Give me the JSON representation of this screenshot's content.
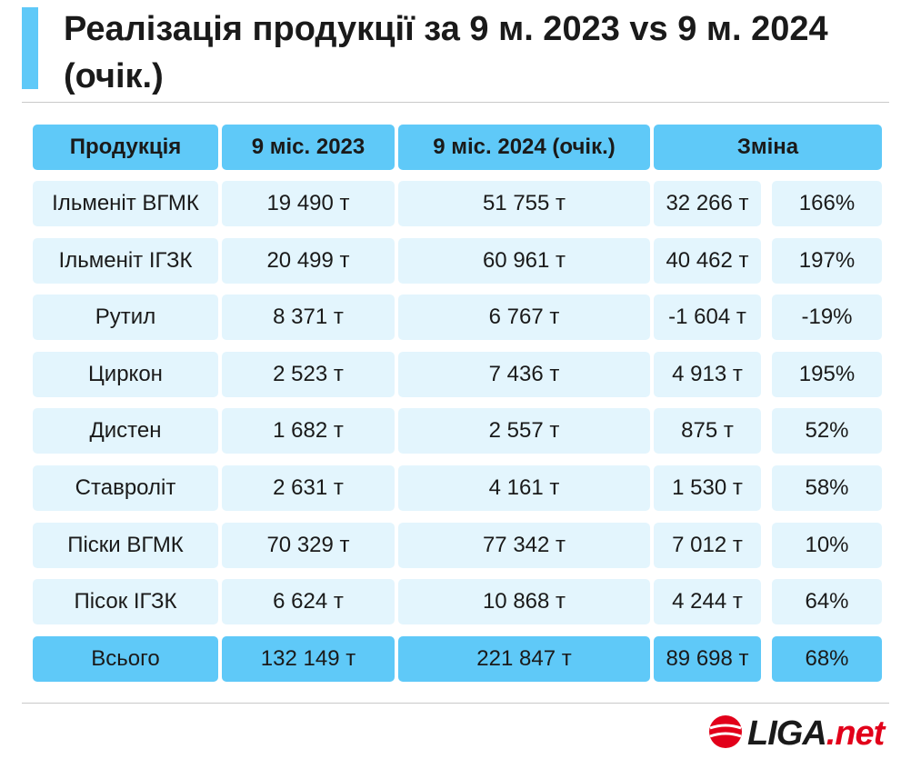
{
  "title": "Реалізація продукції за 9 м. 2023 vs 9 м. 2024 (очік.)",
  "table": {
    "headers": {
      "product": "Продукція",
      "y2023": "9 міс. 2023",
      "y2024": "9 міс. 2024 (очік.)",
      "change": "Зміна"
    },
    "rows": [
      {
        "product": "Ільменіт ВГМК",
        "y2023": "19 490 т",
        "y2024": "51 755 т",
        "abs": "32 266 т",
        "pct": "166%"
      },
      {
        "product": "Ільменіт ІГЗК",
        "y2023": "20 499 т",
        "y2024": "60 961 т",
        "abs": "40 462 т",
        "pct": "197%"
      },
      {
        "product": "Рутил",
        "y2023": "8 371 т",
        "y2024": "6 767 т",
        "abs": "-1 604 т",
        "pct": "-19%"
      },
      {
        "product": "Циркон",
        "y2023": "2 523 т",
        "y2024": "7 436 т",
        "abs": "4 913 т",
        "pct": "195%"
      },
      {
        "product": "Дистен",
        "y2023": "1 682 т",
        "y2024": "2 557 т",
        "abs": "875 т",
        "pct": "52%"
      },
      {
        "product": "Ставроліт",
        "y2023": "2 631 т",
        "y2024": "4 161 т",
        "abs": "1 530 т",
        "pct": "58%"
      },
      {
        "product": "Піски ВГМК",
        "y2023": "70 329 т",
        "y2024": "77 342 т",
        "abs": "7 012 т",
        "pct": "10%"
      },
      {
        "product": "Пісок ІГЗК",
        "y2023": "6 624 т",
        "y2024": "10 868 т",
        "abs": "4 244 т",
        "pct": "64%"
      }
    ],
    "total": {
      "product": "Всього",
      "y2023": "132 149 т",
      "y2024": "221 847 т",
      "abs": "89 698 т",
      "pct": "68%"
    }
  },
  "logo": {
    "brand": "LIGA",
    "suffix": ".net"
  },
  "colors": {
    "accent": "#5fc9f8",
    "row_bg": "#e3f5fd",
    "logo_red": "#e2001a"
  }
}
